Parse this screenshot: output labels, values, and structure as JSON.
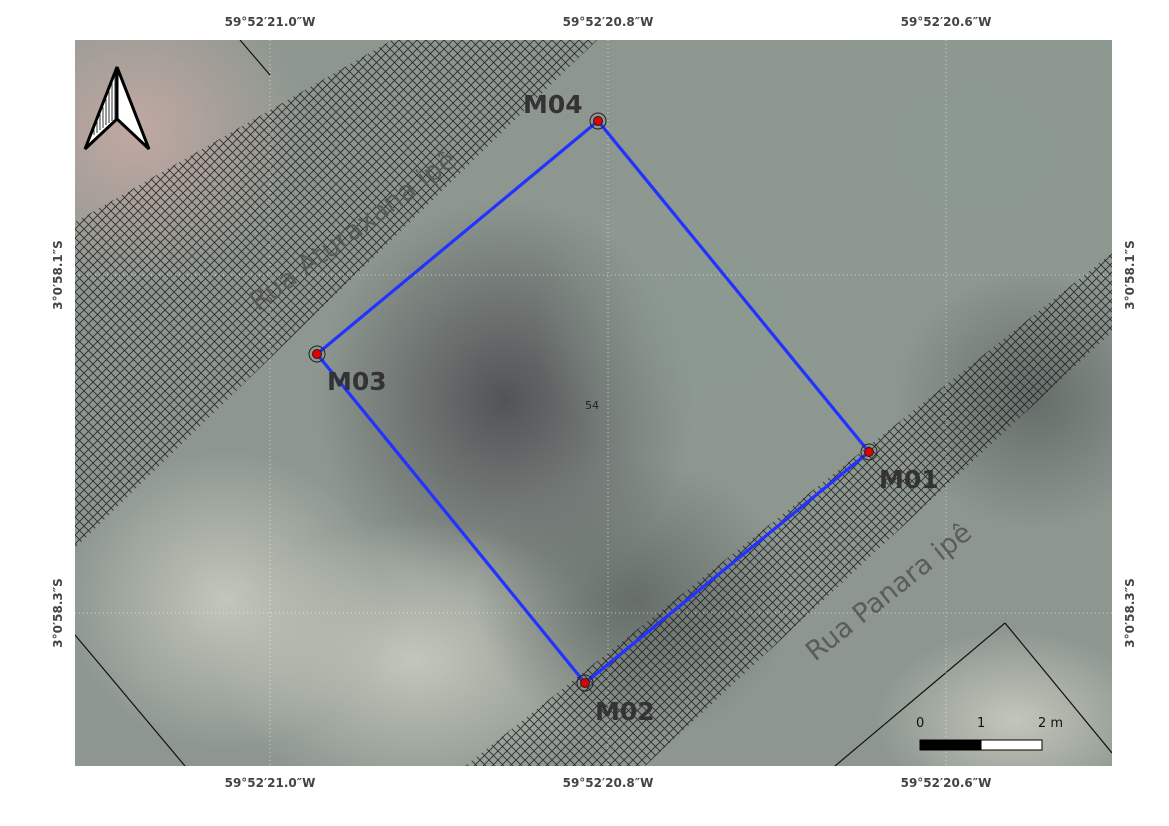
{
  "coordinates": {
    "top": [
      "59°52′21.0″W",
      "59°52′20.8″W",
      "59°52′20.6″W"
    ],
    "bottom": [
      "59°52′21.0″W",
      "59°52′20.8″W",
      "59°52′20.6″W"
    ],
    "left": [
      "3°0′58.1″S",
      "3°0′58.3″S"
    ],
    "right": [
      "3°0′58.1″S",
      "3°0′58.3″S"
    ]
  },
  "map": {
    "streets": [
      "Rua Aturaxana ipê",
      "Rua Panara ipê"
    ],
    "parcel_label": "54",
    "markers": [
      "M04",
      "M03",
      "M01",
      "M02"
    ],
    "colors": {
      "boundary": "#2233ff",
      "marker_fill": "#e00000",
      "hatch": "#1a1a1a"
    }
  },
  "scale_bar": {
    "labels": [
      "0",
      "1",
      "2 m"
    ]
  },
  "north_arrow": {
    "icon": "north-arrow-icon"
  }
}
